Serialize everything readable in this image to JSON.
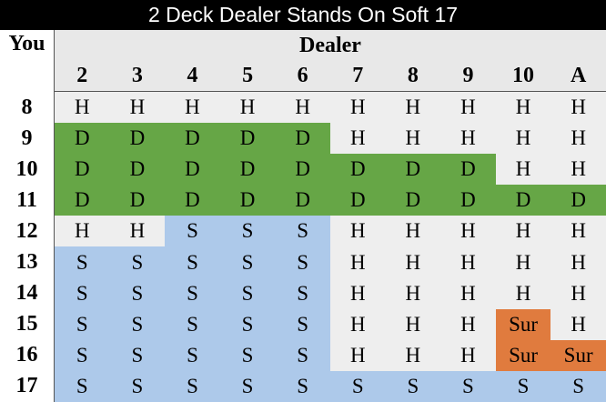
{
  "title": "2 Deck Dealer Stands On Soft 17",
  "corner_label": "You",
  "dealer_label": "Dealer",
  "up_cards": [
    "2",
    "3",
    "4",
    "5",
    "6",
    "7",
    "8",
    "9",
    "10",
    "A"
  ],
  "rows": [
    {
      "hand": "8",
      "actions": [
        "H",
        "H",
        "H",
        "H",
        "H",
        "H",
        "H",
        "H",
        "H",
        "H"
      ]
    },
    {
      "hand": "9",
      "actions": [
        "D",
        "D",
        "D",
        "D",
        "D",
        "H",
        "H",
        "H",
        "H",
        "H"
      ]
    },
    {
      "hand": "10",
      "actions": [
        "D",
        "D",
        "D",
        "D",
        "D",
        "D",
        "D",
        "D",
        "H",
        "H"
      ]
    },
    {
      "hand": "11",
      "actions": [
        "D",
        "D",
        "D",
        "D",
        "D",
        "D",
        "D",
        "D",
        "D",
        "D"
      ]
    },
    {
      "hand": "12",
      "actions": [
        "H",
        "H",
        "S",
        "S",
        "S",
        "H",
        "H",
        "H",
        "H",
        "H"
      ]
    },
    {
      "hand": "13",
      "actions": [
        "S",
        "S",
        "S",
        "S",
        "S",
        "H",
        "H",
        "H",
        "H",
        "H"
      ]
    },
    {
      "hand": "14",
      "actions": [
        "S",
        "S",
        "S",
        "S",
        "S",
        "H",
        "H",
        "H",
        "H",
        "H"
      ]
    },
    {
      "hand": "15",
      "actions": [
        "S",
        "S",
        "S",
        "S",
        "S",
        "H",
        "H",
        "H",
        "Sur",
        "H"
      ]
    },
    {
      "hand": "16",
      "actions": [
        "S",
        "S",
        "S",
        "S",
        "S",
        "H",
        "H",
        "H",
        "Sur",
        "Sur"
      ]
    },
    {
      "hand": "17",
      "actions": [
        "S",
        "S",
        "S",
        "S",
        "S",
        "S",
        "S",
        "S",
        "S",
        "S"
      ]
    }
  ],
  "colors": {
    "H": "#eeeeee",
    "D": "#66a646",
    "S": "#adc9ea",
    "Sur": "#e07b3e",
    "header": "#e8e8e8"
  }
}
